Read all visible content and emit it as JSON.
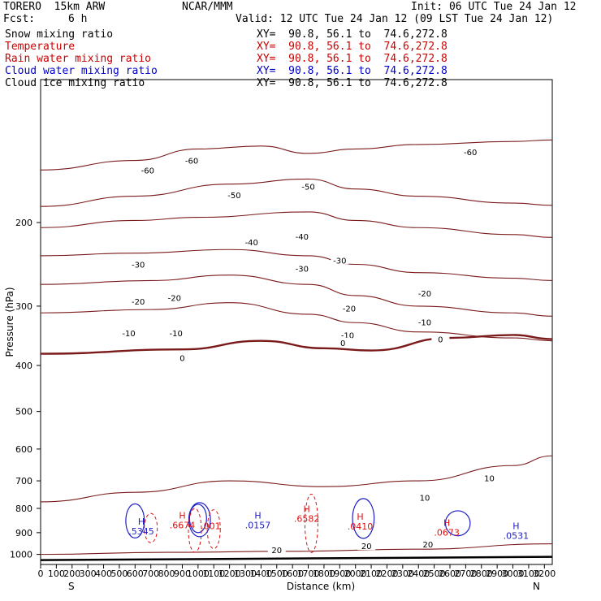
{
  "header": {
    "model": "TORERO  15km ARW",
    "center": "NCAR/MMM",
    "init": "Init: 06 UTC Tue 24 Jan 12",
    "fcst_label": "Fcst:",
    "fcst_value": "6 h",
    "valid": "Valid: 12 UTC Tue 24 Jan 12 (09 LST Tue 24 Jan 12)"
  },
  "legend": [
    {
      "name": "Snow mixing ratio",
      "color": "#000000",
      "xy": "XY=  90.8, 56.1 to  74.6,272.8",
      "xy_color": "#000000"
    },
    {
      "name": "Temperature",
      "color": "#cc0000",
      "xy": "XY=  90.8, 56.1 to  74.6,272.8",
      "xy_color": "#cc0000"
    },
    {
      "name": "Rain water mixing ratio",
      "color": "#cc0000",
      "xy": "XY=  90.8, 56.1 to  74.6,272.8",
      "xy_color": "#cc0000"
    },
    {
      "name": "Cloud water mixing ratio",
      "color": "#0000cc",
      "xy": "XY=  90.8, 56.1 to  74.6,272.8",
      "xy_color": "#0000cc"
    },
    {
      "name": "Cloud ice mixing ratio",
      "color": "#000000",
      "xy": "XY=  90.8, 56.1 to  74.6,272.8",
      "xy_color": "#000000"
    }
  ],
  "colors": {
    "temperature": "#7a1a1a",
    "rain": "#e01010",
    "cloud": "#2020c8",
    "terrain": "#000000"
  },
  "chart_data": {
    "type": "line",
    "xlabel": "Distance (km)",
    "ylabel": "Pressure (hPa)",
    "xlim": [
      0,
      3250
    ],
    "ylim": [
      1050,
      100
    ],
    "x_ticks": [
      0,
      100,
      200,
      300,
      400,
      500,
      600,
      700,
      800,
      900,
      1000,
      1100,
      1200,
      1300,
      1400,
      1500,
      1600,
      1700,
      1800,
      1900,
      2000,
      2100,
      2200,
      2300,
      2400,
      2500,
      2600,
      2700,
      2800,
      2900,
      3000,
      3100,
      3200
    ],
    "y_ticks": [
      200,
      300,
      400,
      500,
      600,
      700,
      800,
      900,
      1000
    ],
    "y_scale": "log",
    "grid": false,
    "x_end_labels": {
      "left": "S",
      "right": "N"
    },
    "temperature_contours": [
      {
        "label": "-60",
        "points": [
          [
            0,
            155
          ],
          [
            600,
            148
          ],
          [
            1000,
            140
          ],
          [
            1400,
            138
          ],
          [
            1700,
            143
          ],
          [
            2000,
            140
          ],
          [
            2400,
            137
          ],
          [
            3000,
            135
          ],
          [
            3250,
            134
          ]
        ],
        "label_pos": [
          [
            680,
            155
          ],
          [
            960,
            148
          ],
          [
            2730,
            142
          ]
        ]
      },
      {
        "label": "-50",
        "points": [
          [
            0,
            185
          ],
          [
            600,
            176
          ],
          [
            1200,
            166
          ],
          [
            1700,
            162
          ],
          [
            2000,
            170
          ],
          [
            2400,
            176
          ],
          [
            3000,
            182
          ],
          [
            3250,
            184
          ]
        ],
        "label_pos": [
          [
            1230,
            175
          ],
          [
            1700,
            168
          ]
        ]
      },
      {
        "label": "-40",
        "points": [
          [
            0,
            205
          ],
          [
            600,
            198
          ],
          [
            1000,
            195
          ],
          [
            1700,
            190
          ],
          [
            2000,
            198
          ],
          [
            2400,
            205
          ],
          [
            3000,
            212
          ],
          [
            3250,
            215
          ]
        ],
        "label_pos": [
          [
            1340,
            220
          ],
          [
            1660,
            214
          ]
        ]
      },
      {
        "label": "-30",
        "points": [
          [
            0,
            235
          ],
          [
            600,
            232
          ],
          [
            1200,
            228
          ],
          [
            1700,
            235
          ],
          [
            2000,
            245
          ],
          [
            2400,
            255
          ],
          [
            3000,
            262
          ],
          [
            3250,
            265
          ]
        ],
        "label_pos": [
          [
            620,
            245
          ],
          [
            1660,
            250
          ],
          [
            1900,
            240
          ]
        ]
      },
      {
        "label": "-20",
        "points": [
          [
            0,
            270
          ],
          [
            700,
            265
          ],
          [
            1200,
            258
          ],
          [
            1700,
            270
          ],
          [
            2000,
            285
          ],
          [
            2400,
            300
          ],
          [
            3000,
            310
          ],
          [
            3250,
            315
          ]
        ],
        "label_pos": [
          [
            620,
            293
          ],
          [
            850,
            288
          ],
          [
            1960,
            303
          ],
          [
            2440,
            282
          ]
        ]
      },
      {
        "label": "-10",
        "points": [
          [
            0,
            310
          ],
          [
            700,
            305
          ],
          [
            1200,
            295
          ],
          [
            1700,
            312
          ],
          [
            2000,
            325
          ],
          [
            2400,
            340
          ],
          [
            3000,
            350
          ],
          [
            3250,
            355
          ]
        ],
        "label_pos": [
          [
            560,
            342
          ],
          [
            860,
            342
          ],
          [
            1950,
            345
          ],
          [
            2440,
            324
          ]
        ]
      },
      {
        "label": "0",
        "points": [
          [
            0,
            378
          ],
          [
            900,
            370
          ],
          [
            1400,
            355
          ],
          [
            1800,
            368
          ],
          [
            2100,
            372
          ],
          [
            2600,
            350
          ],
          [
            3000,
            345
          ],
          [
            3250,
            352
          ]
        ],
        "label_pos": [
          [
            900,
            385
          ],
          [
            1920,
            358
          ],
          [
            2540,
            352
          ]
        ]
      },
      {
        "label": "10",
        "points": [
          [
            0,
            775
          ],
          [
            600,
            740
          ],
          [
            1200,
            700
          ],
          [
            1800,
            720
          ],
          [
            2400,
            700
          ],
          [
            3000,
            650
          ],
          [
            3250,
            620
          ]
        ],
        "label_pos": [
          [
            2850,
            690
          ],
          [
            2440,
            758
          ]
        ]
      },
      {
        "label": "20",
        "points": [
          [
            0,
            1000
          ],
          [
            800,
            990
          ],
          [
            1600,
            985
          ],
          [
            2400,
            975
          ],
          [
            3250,
            950
          ]
        ],
        "label_pos": [
          [
            1500,
            978
          ],
          [
            2070,
            960
          ],
          [
            2460,
            952
          ]
        ]
      }
    ],
    "annotations": [
      {
        "text": "H",
        "sub": ".5345",
        "color": "#2020c8",
        "x": 640,
        "p": 865
      },
      {
        "text": "H",
        "sub": ".6674",
        "color": "#e01010",
        "x": 900,
        "p": 840
      },
      {
        "text": "H",
        "sub": ".0157",
        "color": "#2020c8",
        "x": 1380,
        "p": 840
      },
      {
        "text": "H",
        "sub": ".6582",
        "color": "#e01010",
        "x": 1690,
        "p": 815
      },
      {
        "text": "H",
        "sub": ".0410",
        "color": "#e01010",
        "x": 2030,
        "p": 845
      },
      {
        "text": "H",
        "sub": ".0673",
        "color": "#e01010",
        "x": 2580,
        "p": 870
      },
      {
        "text": "H",
        "sub": ".0531",
        "color": "#2020c8",
        "x": 3020,
        "p": 885
      },
      {
        "text": ".001",
        "sub": "",
        "color": "#e01010",
        "x": 1080,
        "p": 885
      }
    ]
  }
}
